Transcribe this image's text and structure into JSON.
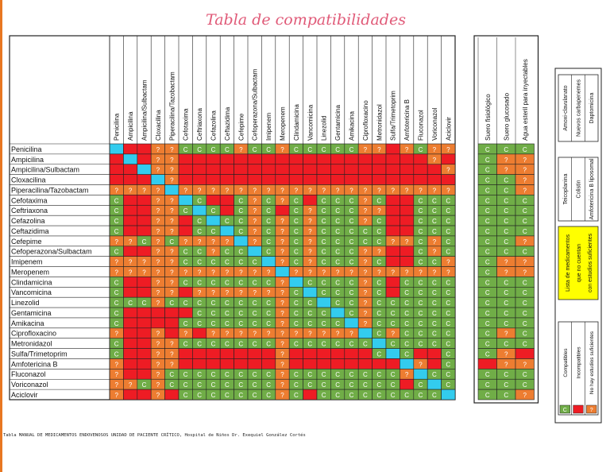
{
  "title": "Tabla de compatibilidades",
  "caption": "Tabla MANUAL DE MEDICAMENTOS ENDOVENOSOS UNIDAD DE PACIENTE CRÍTICO, Hospital de Niños Dr. Exequiel González Cortés",
  "chart_data": {
    "type": "heatmap",
    "title": "Tabla de compatibilidades",
    "drugs": [
      "Penicilina",
      "Ampicilina",
      "Ampicilina/Sulbactam",
      "Cloxacilina",
      "Piperacilina/Tazobactam",
      "Cefotaxima",
      "Ceftriaxona",
      "Cefazolina",
      "Ceftazidima",
      "Cefepime",
      "Cefoperazona/Sulbactam",
      "Imipenem",
      "Meropenem",
      "Clindamicina",
      "Vancomicina",
      "Linezolid",
      "Gentamicina",
      "Amikacina",
      "Ciprofloxacino",
      "Metronidazol",
      "Sulfa/Trimetoprim",
      "Amfotericina B",
      "Fluconazol",
      "Voriconazol",
      "Aciclovir"
    ],
    "row_labels": [
      "Penicilina",
      "Ampicilina",
      "Ampicilina/Sulbactam",
      "Cloxacilina",
      "Piperacilina/Tazobactam",
      "Cefotaxima",
      "Ceftriaxona",
      "Cefazolina",
      "Ceftazidima",
      "Cefepime",
      "Cefoperazona/Sulbactam",
      "Imipenem",
      "Meropenem",
      "Clindamicina",
      "Vancomicina",
      "Linezolid",
      "Gentamicina",
      "Amikacina",
      "Ciprofloxacino",
      "Metronidazol",
      "Sulfa/Trimetoprim",
      "Amfotericina B",
      "Fluconazol",
      "Voriconazol",
      "Aciclovir"
    ],
    "matrix": [
      "DIIQQCCCCQCCQCCCCCQQIQCQQ",
      "IDIQQIIIIIIIIIIIIIIIIIIQI",
      "IIDQQIIIIIIIIIIIIIIIIIIIQ",
      "IIIDQIIIIIIIIIIIIIIIIIIII",
      "QQQQDQQQQQQQQQQQQQQQQQQQQ",
      "CIIQQDCIICQCQCICCCQCIICCC",
      "CIIQQCDCICQCICQCCCQQIICCC",
      "CIIQQICDCCQCQCQCCCQCIICCC",
      "CIIQQICCDCQCQCQCCCCCIICCC",
      "QQCQCQQQQDQCQCQCCCCCQQCQC",
      "CIIQQCCQCCDCQCQCCCQQIICQC",
      "QQQQQCCCCCCDQCQCCCQCIICCQ",
      "QQQQQQQQQQQQDQQQQQQQQQQQQ",
      "CIIQQCCCCCCCQDCCCCQCICCCC",
      "CIIQQIQQQQQQQCDCCCQCICCCC",
      "CCCQCCCCCCCCQCCDCCQCCCCCC",
      "CIIIIICCCCCCQCCCDCQCCCCCC",
      "CIIIICCCCCCCQCCCCDQCCCCCC",
      "QIIQIQIQQQQQQQQQQQDCQCCCC",
      "CIIQQCCCCCCCQCCCCCCDCCCCC",
      "CIIQQIIIIIIIQIIIIIICDCIIC",
      "QIIQQIIIIIIIQIIIIIIIIDQIC",
      "QIIQCCCCCCCCQCCCCCCCCQDCC",
      "QQCQCCCCCCCCQCCCCCCCCICDC",
      "QIIQICCCCCCCQCICCCCCCCCCD"
    ],
    "fluid_columns": [
      "Suero fisiológico",
      "Suero glucosado",
      "Agua esteril para inyectables"
    ],
    "fluid_matrix": [
      "CCC",
      "CQQ",
      "CQQ",
      "CCQ",
      "CCQ",
      "CCC",
      "CCC",
      "CCC",
      "CCC",
      "CCQ",
      "CCC",
      "CQQ",
      "CQQ",
      "CCC",
      "CCC",
      "CCC",
      "CCC",
      "CCC",
      "CQC",
      "CCC",
      "CQI",
      "IQQ",
      "CCC",
      "CCC",
      "CCQ"
    ],
    "cell_labels": {
      "C": "C",
      "Q": "?",
      "I": "",
      "D": ""
    },
    "colors": {
      "C": "#70ad47",
      "Q": "#ed7d31",
      "I": "#ee1c24",
      "D": "#33ccee",
      "yellow": "#ffff00",
      "grid": "#222222"
    },
    "side_panel": {
      "list1": [
        "Amoxi-clavulanato",
        "Nuevos carbapenemes",
        "Daptomicina"
      ],
      "list2": [
        "Teicoplanina",
        "Colistin",
        "Amfotericina B liposomal"
      ],
      "highlight": "Lista de medicamentos que no cuentan con estudios suficientes",
      "legend": [
        {
          "symbol": "C",
          "label": "Compatibles",
          "color": "#70ad47"
        },
        {
          "symbol": "",
          "label": "Incompatibles",
          "color": "#ee1c24"
        },
        {
          "symbol": "?",
          "label": "No hay estudios suficientes",
          "color": "#ed7d31"
        }
      ]
    }
  }
}
